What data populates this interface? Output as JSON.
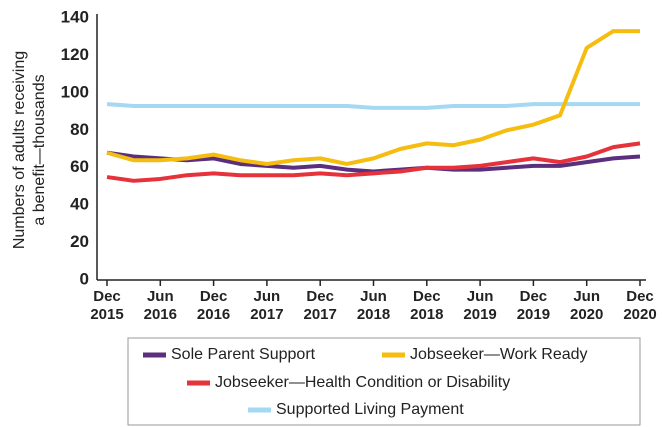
{
  "chart_data": {
    "type": "line",
    "y_label": [
      "Numbers of adults receiving",
      "a benefit—thousands"
    ],
    "categories": [
      "Dec 2015",
      null,
      "Jun 2016",
      null,
      "Dec 2016",
      null,
      "Jun 2017",
      null,
      "Dec 2017",
      null,
      "Jun 2018",
      null,
      "Dec 2018",
      null,
      "Jun 2019",
      null,
      "Dec 2019",
      null,
      "Jun 2020",
      null,
      "Dec 2020"
    ],
    "series": [
      {
        "name": "Sole Parent Support",
        "color": "#5b2e7e",
        "values": [
          68,
          66,
          65,
          64,
          65,
          62,
          61,
          60,
          61,
          59,
          58,
          59,
          60,
          59,
          59,
          60,
          61,
          61,
          63,
          65,
          66
        ]
      },
      {
        "name": "Jobseeker—Work Ready",
        "color": "#f5bd0f",
        "values": [
          68,
          64,
          64,
          65,
          67,
          64,
          62,
          64,
          65,
          62,
          65,
          70,
          73,
          72,
          75,
          80,
          83,
          88,
          124,
          133,
          133
        ]
      },
      {
        "name": "Jobseeker—Health Condition or Disability",
        "color": "#e5323b",
        "values": [
          55,
          53,
          54,
          56,
          57,
          56,
          56,
          56,
          57,
          56,
          57,
          58,
          60,
          60,
          61,
          63,
          65,
          63,
          66,
          71,
          73
        ]
      },
      {
        "name": "Supported Living Payment",
        "color": "#a5d8f3",
        "values": [
          94,
          93,
          93,
          93,
          93,
          93,
          93,
          93,
          93,
          93,
          92,
          92,
          92,
          93,
          93,
          93,
          94,
          94,
          94,
          94,
          94
        ]
      }
    ],
    "ylim": [
      0,
      140
    ],
    "yticks": [
      0,
      20,
      40,
      60,
      80,
      100,
      120,
      140
    ],
    "grid": false
  }
}
